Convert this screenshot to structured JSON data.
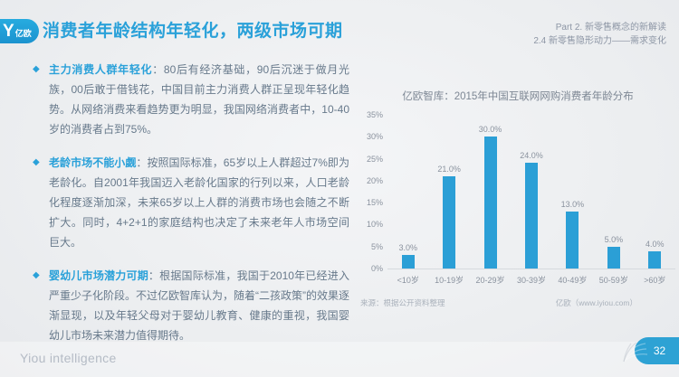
{
  "header": {
    "logo_glyph": "Y",
    "logo_text": "亿欧",
    "title": "消费者年龄结构年轻化，两级市场可期",
    "part_line": "Part 2. 新零售概念的新解读",
    "section_line": "2.4 新零售隐形动力——需求变化"
  },
  "bullets": [
    {
      "marker": "◆",
      "head": "主力消费人群年轻化",
      "body": "：80后有经济基础，90后沉迷于做月光族，00后敢于借钱花，中国目前主力消费人群正呈现年轻化趋势。从网络消费来看趋势更为明显，我国网络消费者中，10-40岁的消费者占到75%。"
    },
    {
      "marker": "◆",
      "head": "老龄市场不能小觑",
      "body": "：按照国际标准，65岁以上人群超过7%即为老龄化。自2001年我国迈入老龄化国家的行列以来，人口老龄化程度逐渐加深，未来65岁以上人群的消费市场也会随之不断扩大。同时，4+2+1的家庭结构也决定了未来老年人市场空间巨大。"
    },
    {
      "marker": "◆",
      "head": "婴幼儿市场潜力可期",
      "body": "：根据国际标准，我国于2010年已经进入严重少子化阶段。不过亿欧智库认为，随着“二孩政策”的效果逐渐显现，以及年轻父母对于婴幼儿教育、健康的重视，我国婴幼儿市场未来潜力值得期待。"
    }
  ],
  "chart_data": {
    "type": "bar",
    "title": "亿欧智库：2015年中国互联网网购消费者年龄分布",
    "categories": [
      "<10岁",
      "10-19岁",
      "20-29岁",
      "30-39岁",
      "40-49岁",
      "50-59岁",
      ">60岁"
    ],
    "values": [
      3.0,
      21.0,
      30.0,
      24.0,
      13.0,
      5.0,
      4.0
    ],
    "value_labels": [
      "3.0%",
      "21.0%",
      "30.0%",
      "24.0%",
      "13.0%",
      "5.0%",
      "4.0%"
    ],
    "xlabel": "",
    "ylabel": "",
    "ylim": [
      0,
      35
    ],
    "yticks": [
      "0%",
      "5%",
      "10%",
      "15%",
      "20%",
      "25%",
      "30%",
      "35%"
    ],
    "grid": false,
    "legend": false,
    "bar_color": "#2b9fd6",
    "source_left": "来源：根据公开资料整理",
    "source_right": "亿欧（www.iyiou.com）"
  },
  "footer": {
    "brand": "Yiou intelligence",
    "page_number": "32"
  },
  "colors": {
    "accent": "#2aa1d9",
    "body_text": "#67798b",
    "bar": "#2b9fd6",
    "muted": "#8a929e"
  }
}
